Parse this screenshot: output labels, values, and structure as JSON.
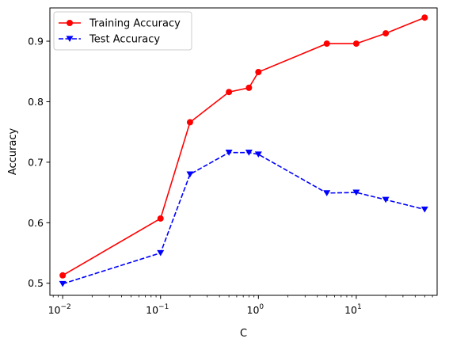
{
  "chart_data": {
    "type": "line",
    "title": "",
    "xlabel": "C",
    "ylabel": "Accuracy",
    "xscale": "log",
    "xlim": [
      0.0074,
      67
    ],
    "ylim": [
      0.48,
      0.955
    ],
    "x": [
      0.01,
      0.1,
      0.2,
      0.5,
      0.8,
      1,
      5,
      10,
      20,
      50
    ],
    "xticks": [
      {
        "value": 0.01,
        "base": "10",
        "exp": "−2"
      },
      {
        "value": 0.1,
        "base": "10",
        "exp": "−1"
      },
      {
        "value": 1,
        "base": "10",
        "exp": "0"
      },
      {
        "value": 10,
        "base": "10",
        "exp": "1"
      }
    ],
    "yticks": [
      {
        "value": 0.5,
        "label": "0.5"
      },
      {
        "value": 0.6,
        "label": "0.6"
      },
      {
        "value": 0.7,
        "label": "0.7"
      },
      {
        "value": 0.8,
        "label": "0.8"
      },
      {
        "value": 0.9,
        "label": "0.9"
      }
    ],
    "series": [
      {
        "name": "Training Accuracy",
        "color": "#ff0000",
        "dash": "solid",
        "marker": "circle",
        "values": [
          0.513,
          0.607,
          0.766,
          0.816,
          0.823,
          0.849,
          0.896,
          0.896,
          0.913,
          0.939
        ]
      },
      {
        "name": "Test Accuracy",
        "color": "#0000ff",
        "dash": "dashed",
        "marker": "triangle-down",
        "values": [
          0.499,
          0.55,
          0.68,
          0.716,
          0.716,
          0.713,
          0.649,
          0.65,
          0.638,
          0.622
        ]
      }
    ],
    "legend": "upper-left",
    "grid": false
  }
}
